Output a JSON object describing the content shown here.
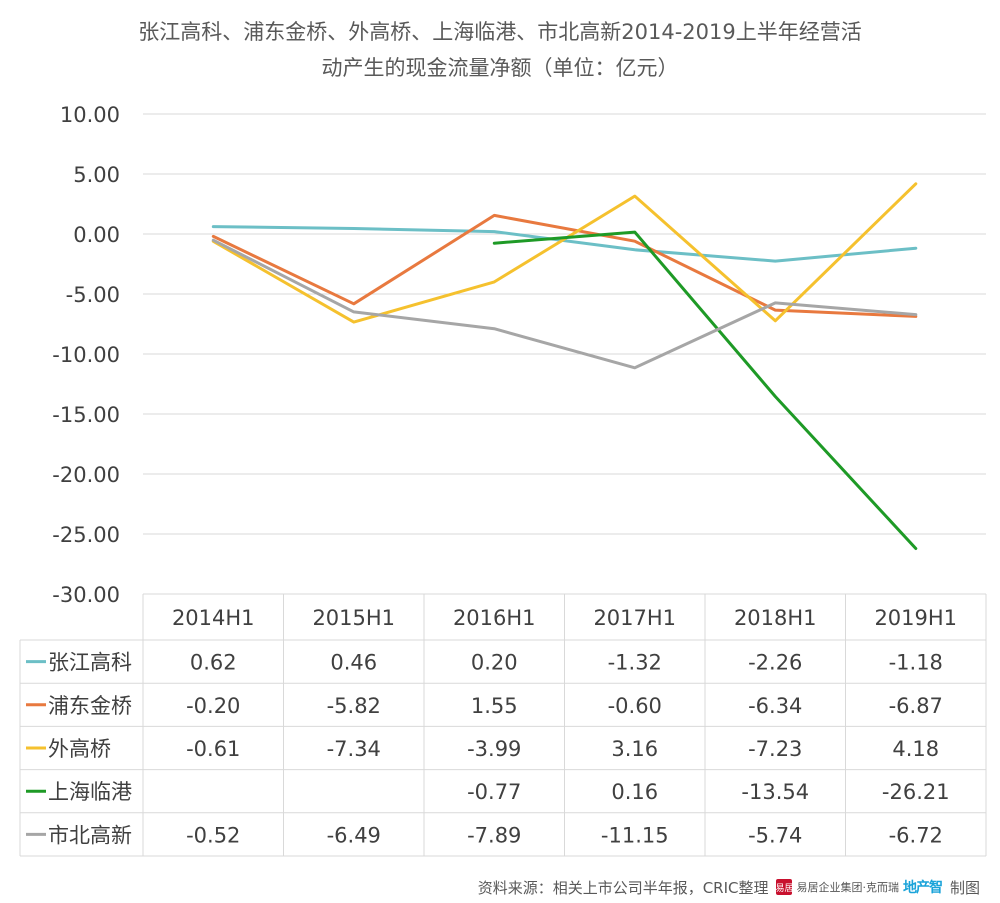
{
  "title_lines": [
    "张江高科、浦东金桥、外高桥、上海临港、市北高新2014-2019上半年经营活",
    "动产生的现金流量净额（单位：亿元）"
  ],
  "source": {
    "text": "资料来源：相关上市公司半年报，CRIC整理",
    "logo_mark": "易居",
    "logo_text": "易居企业集团·克而瑞",
    "logo_stamp": "地产智",
    "suffix": "制图"
  },
  "chart_data": {
    "type": "line",
    "title": "张江高科、浦东金桥、外高桥、上海临港、市北高新2014-2019上半年经营活动产生的现金流量净额（单位：亿元）",
    "categories": [
      "2014H1",
      "2015H1",
      "2016H1",
      "2017H1",
      "2018H1",
      "2019H1"
    ],
    "y_ticks": [
      "10.00",
      "5.00",
      "0.00",
      "-5.00",
      "-10.00",
      "-15.00",
      "-20.00",
      "-25.00",
      "-30.00"
    ],
    "ylim": [
      -30,
      10
    ],
    "grid": true,
    "legend": "data-table",
    "series": [
      {
        "name": "张江高科",
        "color": "#6cbfc6",
        "values": [
          0.62,
          0.46,
          0.2,
          -1.32,
          -2.26,
          -1.18
        ],
        "labels": [
          "0.62",
          "0.46",
          "0.20",
          "-1.32",
          "-2.26",
          "-1.18"
        ]
      },
      {
        "name": "浦东金桥",
        "color": "#e8793f",
        "values": [
          -0.2,
          -5.82,
          1.55,
          -0.6,
          -6.34,
          -6.87
        ],
        "labels": [
          "-0.20",
          "-5.82",
          "1.55",
          "-0.60",
          "-6.34",
          "-6.87"
        ]
      },
      {
        "name": "外高桥",
        "color": "#f5c12e",
        "values": [
          -0.61,
          -7.34,
          -3.99,
          3.16,
          -7.23,
          4.18
        ],
        "labels": [
          "-0.61",
          "-7.34",
          "-3.99",
          "3.16",
          "-7.23",
          "4.18"
        ]
      },
      {
        "name": "上海临港",
        "color": "#1e9a26",
        "values": [
          null,
          null,
          -0.77,
          0.16,
          -13.54,
          -26.21
        ],
        "labels": [
          "",
          "",
          "-0.77",
          "0.16",
          "-13.54",
          "-26.21"
        ]
      },
      {
        "name": "市北高新",
        "color": "#a6a6a6",
        "values": [
          -0.52,
          -6.49,
          -7.89,
          -11.15,
          -5.74,
          -6.72
        ],
        "labels": [
          "-0.52",
          "-6.49",
          "-7.89",
          "-11.15",
          "-5.74",
          "-6.72"
        ]
      }
    ]
  }
}
